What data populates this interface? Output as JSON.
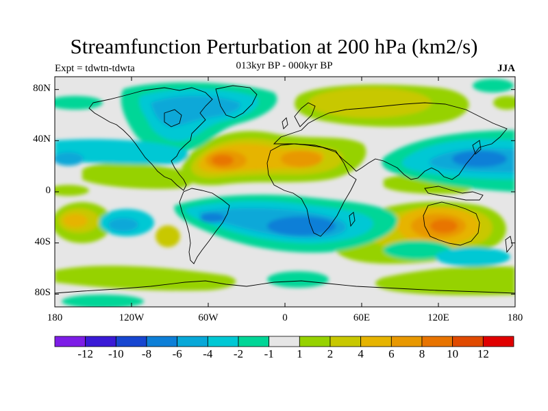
{
  "title": "Streamfunction Perturbation at 200 hPa (km2/s)",
  "subtitle": "013kyr BP - 000kyr BP",
  "left_label": "Expt = tdwtn-tdwta",
  "right_label": "JJA",
  "chart_data": {
    "type": "heatmap",
    "projection": "cylindrical-equidistant",
    "title": "Streamfunction Perturbation at 200 hPa (km2/s)",
    "subtitle": "013kyr BP - 000kyr BP",
    "experiment": "Expt = tdwtn-tdwta",
    "season": "JJA",
    "lon_range": [
      -180,
      180
    ],
    "lat_range": [
      -90,
      90
    ],
    "x_tick_labels": [
      "180",
      "120W",
      "60W",
      "0",
      "60E",
      "120E",
      "180"
    ],
    "x_tick_values": [
      -180,
      -120,
      -60,
      0,
      60,
      120,
      180
    ],
    "y_tick_labels": [
      "80N",
      "40N",
      "0",
      "40S",
      "80S"
    ],
    "y_tick_values": [
      80,
      40,
      0,
      -40,
      -80
    ],
    "colorbar": {
      "levels": [
        -14,
        -12,
        -10,
        -8,
        -6,
        -4,
        -2,
        -1,
        1,
        2,
        4,
        6,
        8,
        10,
        12,
        14
      ],
      "labels": [
        "-12",
        "-10",
        "-8",
        "-6",
        "-4",
        "-2",
        "-1",
        "1",
        "2",
        "4",
        "6",
        "8",
        "10",
        "12"
      ],
      "colors": [
        "#7d1de6",
        "#3a1ad6",
        "#1746d0",
        "#0d7fd7",
        "#08a8d8",
        "#00c8d4",
        "#00d697",
        "#e6e6e6",
        "#96d200",
        "#c8c800",
        "#e6b400",
        "#e89800",
        "#e87400",
        "#e04a00",
        "#e00000"
      ]
    },
    "features": [
      {
        "type": "positive",
        "region": "North Atlantic / Sahara",
        "center": [
          -40,
          22
        ],
        "peak": 8
      },
      {
        "type": "positive",
        "region": "Sahara",
        "center": [
          12,
          22
        ],
        "peak": 6
      },
      {
        "type": "positive",
        "region": "Australia",
        "center": [
          135,
          -25
        ],
        "peak": 8
      },
      {
        "type": "positive",
        "region": "South Pacific",
        "center": [
          -175,
          -20
        ],
        "peak": 4
      },
      {
        "type": "positive",
        "region": "Arctic Siberia",
        "center": [
          75,
          78
        ],
        "peak": 2
      },
      {
        "type": "negative",
        "region": "South Atlantic",
        "center": [
          10,
          -25
        ],
        "peak": -8
      },
      {
        "type": "negative",
        "region": "North Pacific",
        "center": [
          150,
          25
        ],
        "peak": -8
      },
      {
        "type": "negative",
        "region": "North America / Arctic",
        "center": [
          -95,
          70
        ],
        "peak": -6
      },
      {
        "type": "negative",
        "region": "Southern Ocean",
        "center": [
          10,
          -70
        ],
        "peak": -2
      }
    ]
  }
}
